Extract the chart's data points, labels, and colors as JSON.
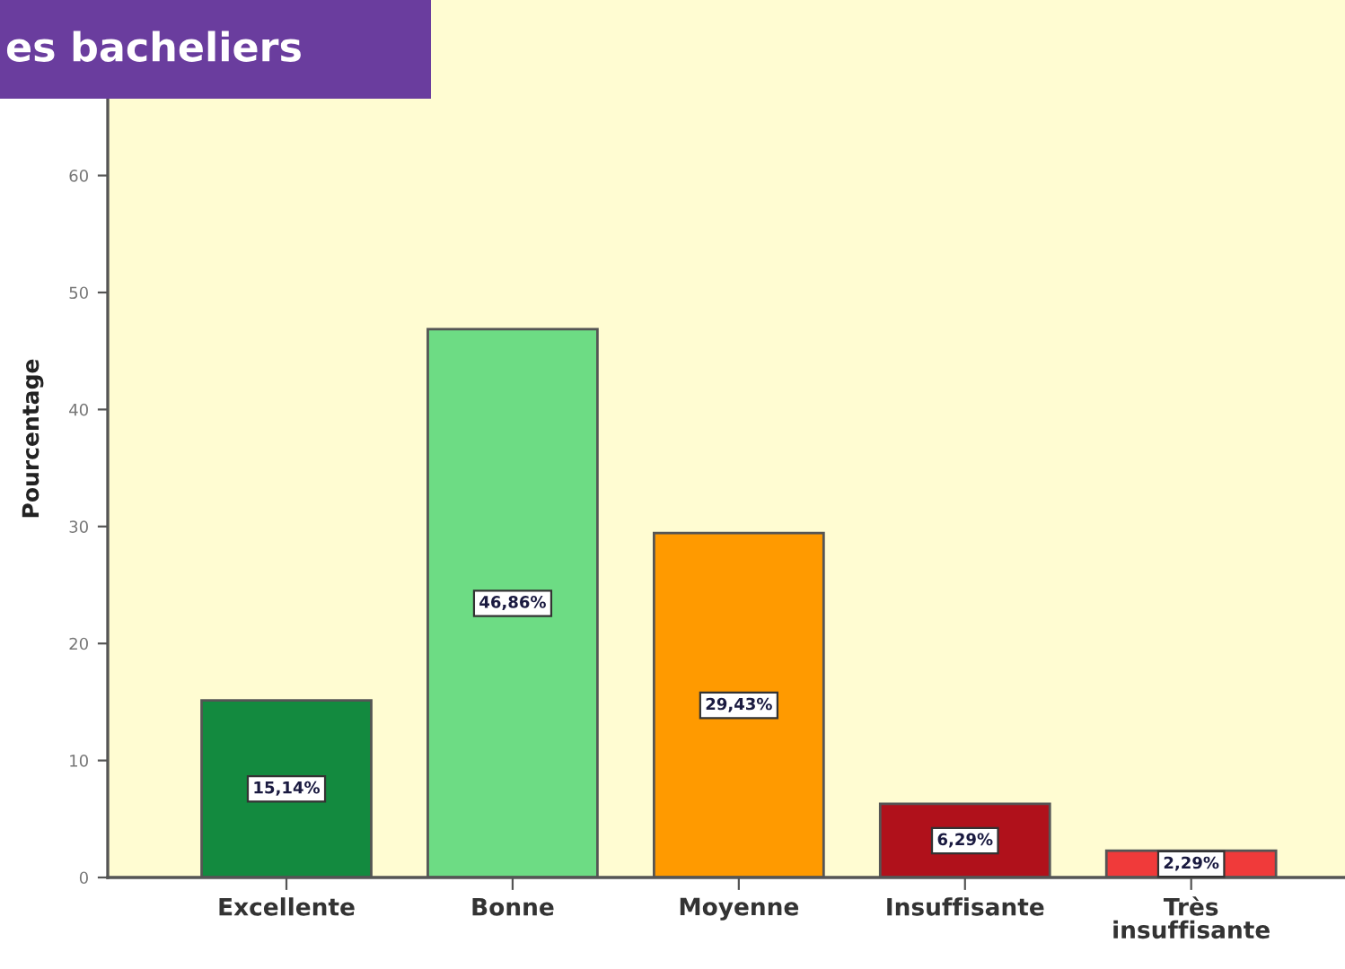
{
  "chart_data": {
    "type": "bar",
    "title": "es bacheliers",
    "ylabel": "Pourcentage",
    "categories": [
      "Excellente",
      "Bonne",
      "Moyenne",
      "Insuffisante",
      "Très\ninsuffisante"
    ],
    "values": [
      15.14,
      46.86,
      29.43,
      6.29,
      2.29
    ],
    "colors": [
      "#138a3f",
      "#6ddc84",
      "#ff9a00",
      "#b0111b",
      "#f03a3a"
    ],
    "value_labels": [
      "15,14%",
      "46,86%",
      "29,43%",
      "6,29%",
      "2,29%"
    ],
    "ylim": [
      0,
      75
    ],
    "yticks": [
      0,
      10,
      20,
      30,
      40,
      50,
      60
    ],
    "grid": false
  }
}
